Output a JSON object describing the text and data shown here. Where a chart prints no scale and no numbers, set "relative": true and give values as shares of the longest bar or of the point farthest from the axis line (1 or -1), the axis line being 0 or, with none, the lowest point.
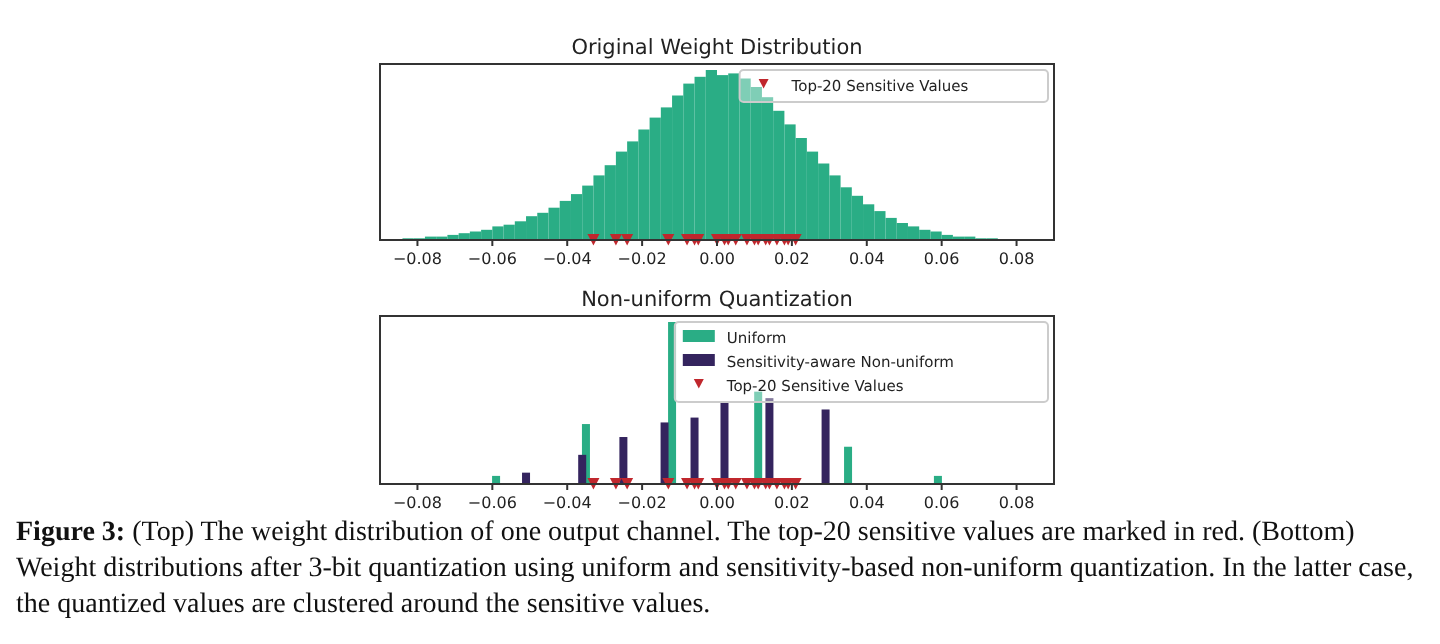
{
  "chart_data": [
    {
      "type": "bar",
      "title": "Original Weight Distribution",
      "relative": true,
      "xlim": [
        -0.09,
        0.09
      ],
      "xticks": [
        {
          "value": -0.08,
          "label": "−0.08"
        },
        {
          "value": -0.06,
          "label": "−0.06"
        },
        {
          "value": -0.04,
          "label": "−0.04"
        },
        {
          "value": -0.02,
          "label": "−0.02"
        },
        {
          "value": 0,
          "label": "0.00"
        },
        {
          "value": 0.02,
          "label": "0.02"
        },
        {
          "value": 0.04,
          "label": "0.04"
        },
        {
          "value": 0.06,
          "label": "0.06"
        },
        {
          "value": 0.08,
          "label": "0.08"
        }
      ],
      "tick_labels": "x",
      "legend": "top right",
      "series": [
        {
          "color": "#2aad85",
          "x": [
            -0.0885,
            -0.0855,
            -0.0825,
            -0.0795,
            -0.0765,
            -0.0735,
            -0.0705,
            -0.0675,
            -0.0645,
            -0.0615,
            -0.0585,
            -0.0555,
            -0.0525,
            -0.0495,
            -0.0465,
            -0.0435,
            -0.0405,
            -0.0375,
            -0.0345,
            -0.0315,
            -0.0285,
            -0.0255,
            -0.0225,
            -0.0195,
            -0.0165,
            -0.0135,
            -0.0105,
            -0.0075,
            -0.0045,
            -0.0015,
            0.0015,
            0.0045,
            0.0075,
            0.0105,
            0.0135,
            0.0165,
            0.0195,
            0.0225,
            0.0255,
            0.0285,
            0.0315,
            0.0345,
            0.0375,
            0.0405,
            0.0435,
            0.0465,
            0.0495,
            0.0525,
            0.0555,
            0.0585,
            0.0615,
            0.0645,
            0.0675,
            0.0705,
            0.0735,
            0.0765,
            0.0795,
            0.0825,
            0.0855,
            0.0885
          ],
          "values": [
            0,
            0,
            0.01,
            0.01,
            0.02,
            0.02,
            0.03,
            0.04,
            0.05,
            0.06,
            0.08,
            0.09,
            0.11,
            0.14,
            0.16,
            0.19,
            0.23,
            0.27,
            0.32,
            0.38,
            0.44,
            0.52,
            0.58,
            0.65,
            0.72,
            0.78,
            0.85,
            0.92,
            0.96,
            1.0,
            0.97,
            0.98,
            0.95,
            0.9,
            0.84,
            0.76,
            0.68,
            0.6,
            0.52,
            0.45,
            0.38,
            0.31,
            0.26,
            0.21,
            0.17,
            0.13,
            0.1,
            0.08,
            0.06,
            0.05,
            0.03,
            0.02,
            0.02,
            0.01,
            0.01,
            0,
            0,
            0,
            0,
            0
          ]
        },
        {
          "type": "scatter",
          "name": "Top-20 Sensitive Values",
          "color": "#c0272d",
          "marker": "triangle",
          "x": [
            -0.033,
            -0.027,
            -0.024,
            -0.013,
            -0.008,
            -0.006,
            -0.005,
            0,
            0.002,
            0.003,
            0.005,
            0.008,
            0.01,
            0.011,
            0.013,
            0.014,
            0.016,
            0.018,
            0.019,
            0.021
          ],
          "values": [
            0,
            0,
            0,
            0,
            0,
            0,
            0,
            0,
            0,
            0,
            0,
            0,
            0,
            0,
            0,
            0,
            0,
            0,
            0,
            0
          ]
        }
      ]
    },
    {
      "type": "bar",
      "title": "Non-uniform Quantization",
      "relative": true,
      "xlim": [
        -0.09,
        0.09
      ],
      "xticks": [
        {
          "value": -0.08,
          "label": "−0.08"
        },
        {
          "value": -0.06,
          "label": "−0.06"
        },
        {
          "value": -0.04,
          "label": "−0.04"
        },
        {
          "value": -0.02,
          "label": "−0.02"
        },
        {
          "value": 0,
          "label": "0.00"
        },
        {
          "value": 0.02,
          "label": "0.02"
        },
        {
          "value": 0.04,
          "label": "0.04"
        },
        {
          "value": 0.06,
          "label": "0.06"
        },
        {
          "value": 0.08,
          "label": "0.08"
        }
      ],
      "tick_labels": "x",
      "legend": "top right",
      "series": [
        {
          "name": "Uniform",
          "color": "#2aad85",
          "x": [
            -0.059,
            -0.035,
            -0.012,
            0.011,
            0.035,
            0.059
          ],
          "values": [
            0.05,
            0.37,
            1.0,
            0.57,
            0.23,
            0.05
          ]
        },
        {
          "name": "Sensitivity-aware Non-uniform",
          "color": "#34245e",
          "x": [
            -0.051,
            -0.036,
            -0.025,
            -0.014,
            -0.006,
            0.002,
            0.014,
            0.029
          ],
          "values": [
            0.07,
            0.18,
            0.29,
            0.38,
            0.41,
            0.5,
            0.53,
            0.46
          ]
        },
        {
          "type": "scatter",
          "name": "Top-20 Sensitive Values",
          "color": "#c0272d",
          "marker": "triangle",
          "x": [
            -0.033,
            -0.027,
            -0.024,
            -0.013,
            -0.008,
            -0.006,
            -0.005,
            0,
            0.002,
            0.003,
            0.005,
            0.008,
            0.01,
            0.011,
            0.013,
            0.014,
            0.016,
            0.018,
            0.019,
            0.021
          ],
          "values": [
            0,
            0,
            0,
            0,
            0,
            0,
            0,
            0,
            0,
            0,
            0,
            0,
            0,
            0,
            0,
            0,
            0,
            0,
            0,
            0
          ]
        }
      ],
      "annotations": [
        "Figure 3:",
        "(Top) The weight distribution of one output channel. The top-20 sensitive values are marked in red. (Bottom) Weight distributions after 3-bit quantization using uniform and sensitivity-based non-uniform quantization. In the latter case, the quantized values are clustered around the sensitive values."
      ]
    }
  ]
}
